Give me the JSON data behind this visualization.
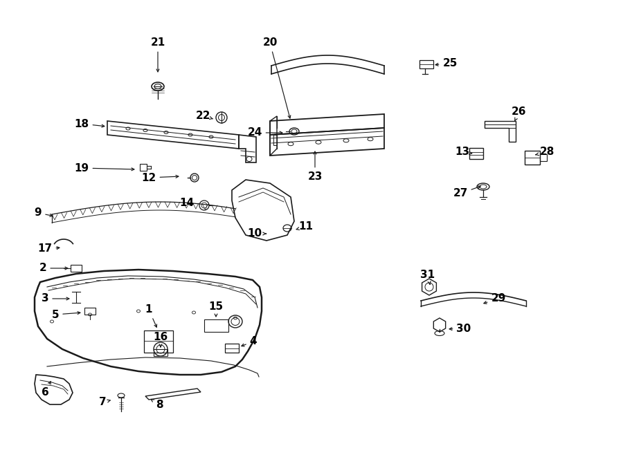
{
  "bg_color": "#ffffff",
  "line_color": "#1a1a1a",
  "text_color": "#000000",
  "fig_width": 9.0,
  "fig_height": 6.61,
  "dpi": 100
}
